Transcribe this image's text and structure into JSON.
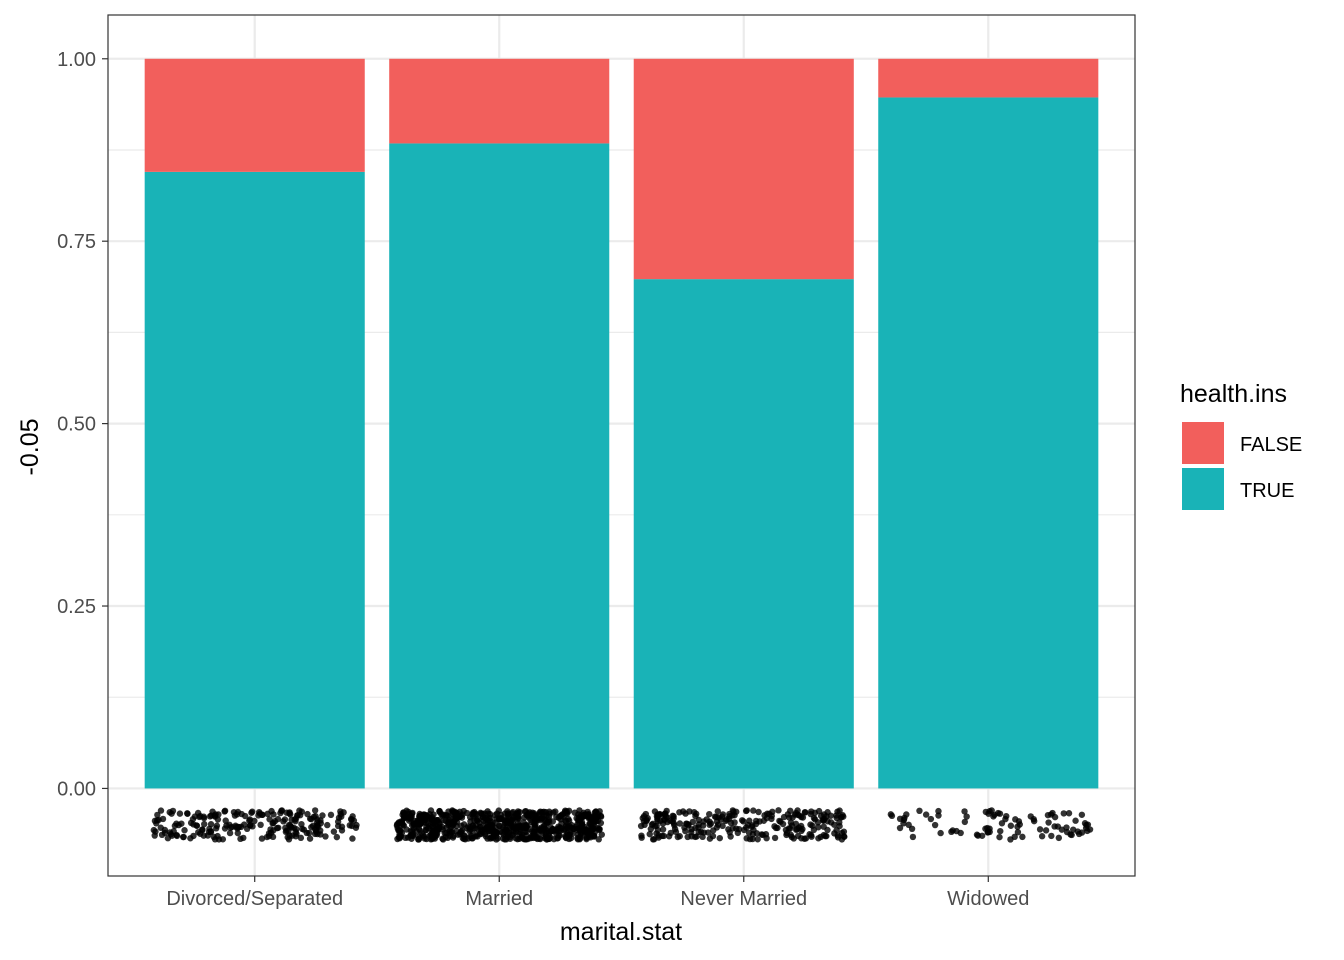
{
  "chart_data": {
    "type": "bar",
    "stacked": true,
    "xlabel": "marital.stat",
    "ylabel": "-0.05",
    "categories": [
      "Divorced/Separated",
      "Married",
      "Never Married",
      "Widowed"
    ],
    "series": [
      {
        "name": "TRUE",
        "color": "#19B3B7",
        "values": [
          0.845,
          0.884,
          0.698,
          0.947
        ]
      },
      {
        "name": "FALSE",
        "color": "#F25F5C",
        "values": [
          0.155,
          0.116,
          0.302,
          0.053
        ]
      }
    ],
    "ylim": [
      -0.12,
      1.06
    ],
    "yticks": [
      0.0,
      0.25,
      0.5,
      0.75,
      1.0
    ],
    "ytick_labels": [
      "0.00",
      "0.25",
      "0.50",
      "0.75",
      "1.00"
    ],
    "legend": {
      "title": "health.ins",
      "entries": [
        {
          "label": "FALSE",
          "color": "#F25F5C"
        },
        {
          "label": "TRUE",
          "color": "#19B3B7"
        }
      ],
      "position": "right"
    },
    "jitter_points": {
      "y_range": [
        -0.07,
        -0.03
      ],
      "counts": [
        220,
        700,
        260,
        90
      ],
      "color": "#000000"
    },
    "grid": true,
    "theme": "bw"
  }
}
